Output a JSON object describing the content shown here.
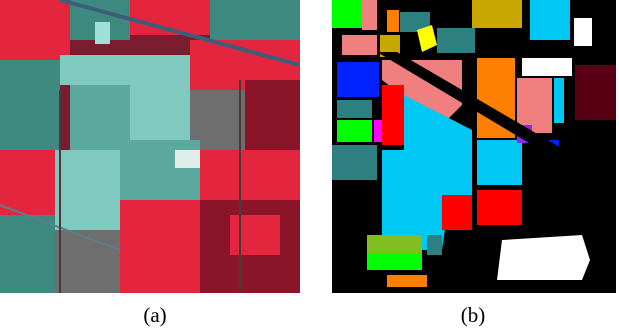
{
  "figure": {
    "panel_a": {
      "caption": "(a)",
      "image": "false-color-satellite-image",
      "colors": {
        "background": "#7a1d2e",
        "red_vegetation": "#e3263e",
        "dark_red": "#8a1428",
        "cyan_field": "#7fc9bf",
        "dark_teal": "#3f8a80",
        "grey": "#6e6e6e",
        "brown": "#5a3a3a"
      }
    },
    "panel_b": {
      "caption": "(b)",
      "image": "ground-truth-class-map",
      "colors": {
        "background": "#000000",
        "green": "#00ff00",
        "salmon": "#f08080",
        "olive": "#c8a800",
        "yellow": "#ffff00",
        "cyan": "#00c8f5",
        "dark_teal": "#2e7f7f",
        "blue": "#0022ff",
        "orange": "#ff7f00",
        "red": "#ff0000",
        "dark_red": "#5a0014",
        "white": "#ffffff",
        "purple": "#8a2be2",
        "yellow_green": "#7fbf1f",
        "magenta": "#ff00ff"
      }
    }
  }
}
